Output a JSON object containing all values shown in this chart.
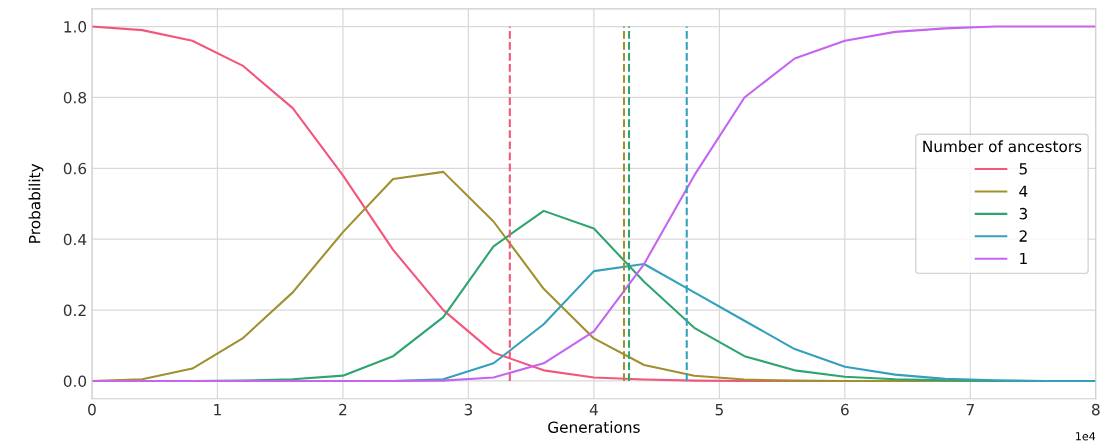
{
  "chart_data": {
    "type": "line",
    "xlabel": "Generations",
    "ylabel": "Probability",
    "legend_title": "Number of ancestors",
    "legend": "right",
    "grid": true,
    "line_style": "solid",
    "marker": "none",
    "x": [
      0,
      0.4,
      0.8,
      1.2,
      1.6,
      2.0,
      2.4,
      2.8,
      3.2,
      3.6,
      4.0,
      4.4,
      4.8,
      5.2,
      5.6,
      6.0,
      6.4,
      6.8,
      7.2,
      7.6,
      8.0
    ],
    "series": [
      {
        "name": "5",
        "color": "#f2577b",
        "values": [
          1.0,
          0.99,
          0.96,
          0.89,
          0.77,
          0.58,
          0.37,
          0.2,
          0.08,
          0.03,
          0.01,
          0.004,
          0.001,
          0,
          0,
          0,
          null,
          null,
          null,
          null,
          null
        ]
      },
      {
        "name": "4",
        "color": "#a09030",
        "values": [
          0,
          0.005,
          0.035,
          0.12,
          0.25,
          0.42,
          0.57,
          0.59,
          0.45,
          0.26,
          0.12,
          0.045,
          0.015,
          0.004,
          0.001,
          0,
          0,
          0,
          0,
          null,
          null
        ]
      },
      {
        "name": "3",
        "color": "#2ea56e",
        "values": [
          0,
          0,
          0,
          0.001,
          0.005,
          0.015,
          0.07,
          0.18,
          0.38,
          0.48,
          0.43,
          0.28,
          0.15,
          0.07,
          0.03,
          0.012,
          0.005,
          0.002,
          0,
          0,
          0
        ]
      },
      {
        "name": "2",
        "color": "#34a0bd",
        "values": [
          null,
          null,
          null,
          null,
          null,
          0,
          0,
          0.005,
          0.05,
          0.16,
          0.31,
          0.33,
          0.25,
          0.17,
          0.09,
          0.04,
          0.018,
          0.006,
          0.002,
          0,
          0
        ]
      },
      {
        "name": "1",
        "color": "#c564f0",
        "values": [
          0,
          0,
          0,
          0,
          0,
          0,
          0,
          0.001,
          0.01,
          0.05,
          0.14,
          0.33,
          0.58,
          0.8,
          0.91,
          0.96,
          0.985,
          0.995,
          1.0,
          1.0,
          1.0
        ]
      }
    ],
    "ref_lines": [
      {
        "axis": "x",
        "value": 3.33,
        "color": "#f2577b",
        "line_style": "dashed"
      },
      {
        "axis": "x",
        "value": 4.24,
        "color": "#a09030",
        "line_style": "dashed"
      },
      {
        "axis": "x",
        "value": 4.28,
        "color": "#2ea56e",
        "line_style": "dashed"
      },
      {
        "axis": "x",
        "value": 4.74,
        "color": "#34a0bd",
        "line_style": "dashed"
      }
    ],
    "xlim": [
      0,
      8
    ],
    "xticks": [
      0,
      1,
      2,
      3,
      4,
      5,
      6,
      7,
      8
    ],
    "ylim": [
      -0.05,
      1.05
    ],
    "yticks": [
      {
        "value": 0,
        "label": "0.0"
      },
      {
        "value": 0.2,
        "label": "0.2"
      },
      {
        "value": 0.4,
        "label": "0.4"
      },
      {
        "value": 0.6,
        "label": "0.6"
      },
      {
        "value": 0.8,
        "label": "0.8"
      },
      {
        "value": 1.0,
        "label": "1.0"
      }
    ],
    "annotations": [
      "1e4"
    ]
  }
}
